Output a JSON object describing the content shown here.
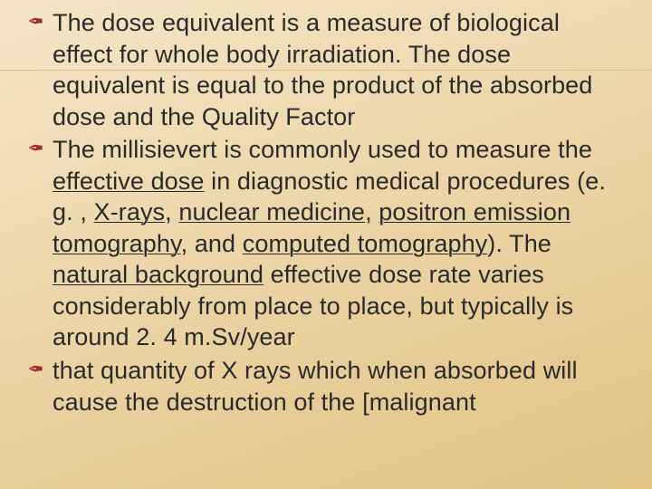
{
  "slide": {
    "background_gradient": [
      "#f5e6c8",
      "#f2e0bd",
      "#eed9b0",
      "#ead2a2",
      "#e6cb94",
      "#e2c486"
    ],
    "bullet_color": "#9c2b2b",
    "text_color": "#2a2a2a",
    "font_family": "Arial",
    "font_size_pt": 20,
    "line_height": 1.28,
    "bullets": [
      {
        "runs": [
          {
            "t": "The dose equivalent is a measure of biological effect for whole body irradiation. The dose equivalent is equal to the product of the absorbed dose and the Quality Factor",
            "u": false
          }
        ]
      },
      {
        "runs": [
          {
            "t": "The millisievert is commonly used to measure the ",
            "u": false
          },
          {
            "t": "effective dose",
            "u": true
          },
          {
            "t": " in diagnostic medical procedures (e. g. , ",
            "u": false
          },
          {
            "t": "X-rays",
            "u": true
          },
          {
            "t": ", ",
            "u": false
          },
          {
            "t": "nuclear medicine",
            "u": true
          },
          {
            "t": ", ",
            "u": false
          },
          {
            "t": "positron emission tomography",
            "u": true
          },
          {
            "t": ", and ",
            "u": false
          },
          {
            "t": "computed tomography",
            "u": true
          },
          {
            "t": "). The ",
            "u": false
          },
          {
            "t": "natural background",
            "u": true
          },
          {
            "t": " effective dose rate varies considerably from place to place, but typically is around 2. 4 m.Sv/year",
            "u": false
          }
        ]
      },
      {
        "runs": [
          {
            "t": " that quantity of X rays which when absorbed will cause the destruction of the [malignant",
            "u": false
          }
        ]
      }
    ]
  }
}
